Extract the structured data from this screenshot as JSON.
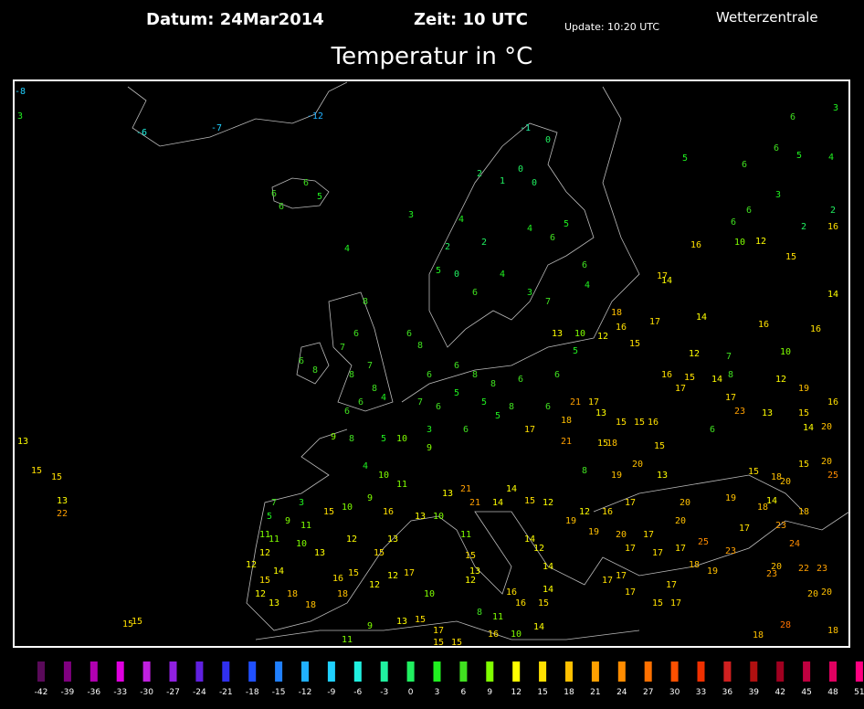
{
  "header": {
    "datum": "Datum: 24Mar2014",
    "zeit": "Zeit: 10 UTC",
    "update": "Update: 10:20 UTC",
    "brand": "Wetterzentrale",
    "title": "Temperatur in °C"
  },
  "stations": [
    -8,
    3,
    -6,
    -7,
    -12,
    6,
    6,
    5,
    6,
    3,
    4,
    -1,
    0,
    0,
    0,
    1,
    2,
    4,
    2,
    2,
    4,
    6,
    5,
    0,
    5,
    6,
    4,
    3,
    7,
    6,
    4,
    5,
    6,
    6,
    5,
    4,
    6,
    3,
    3,
    6,
    6,
    2,
    2,
    16,
    16,
    10,
    12,
    15,
    17,
    14,
    18,
    17,
    14,
    16,
    12,
    14,
    16,
    16,
    15,
    12,
    7,
    10,
    13,
    10,
    5,
    6,
    6,
    8,
    8,
    6,
    6,
    6,
    8,
    8,
    6,
    7,
    8,
    7,
    8,
    6,
    4,
    8,
    6,
    6,
    7,
    6,
    5,
    5,
    8,
    6,
    3,
    6,
    5,
    17,
    18,
    21,
    17,
    13,
    15,
    15,
    16,
    17,
    16,
    15,
    14,
    8,
    12,
    19,
    16,
    17,
    23,
    13,
    15,
    14,
    20,
    21,
    15,
    18,
    15,
    20,
    13,
    19,
    8,
    6,
    9,
    8,
    5,
    10,
    9,
    4,
    10,
    11,
    9,
    10,
    15,
    16,
    13,
    10,
    7,
    3,
    5,
    9,
    11,
    11,
    11,
    12,
    10,
    13,
    12,
    15,
    13,
    12,
    17,
    16,
    15,
    12,
    12,
    15,
    14,
    12,
    13,
    18,
    18,
    18,
    15,
    15,
    13,
    15,
    15,
    13,
    22,
    13,
    21,
    21,
    14,
    14,
    15,
    12,
    11,
    15,
    13,
    12,
    14,
    12,
    14,
    16,
    16,
    15,
    14,
    11,
    8,
    17,
    15,
    13,
    9,
    11,
    15,
    15,
    16,
    10,
    14,
    10,
    12,
    19,
    19,
    16,
    17,
    20,
    17,
    17,
    17,
    17,
    18,
    19,
    20,
    20,
    19,
    18,
    14,
    20,
    18,
    15,
    15,
    20,
    25,
    18,
    23,
    17,
    23,
    25,
    24,
    20,
    23,
    22,
    23,
    20,
    20,
    28,
    18,
    18,
    15,
    17,
    17,
    17,
    17,
    17
  ],
  "colorbar": {
    "labels": [
      -42,
      -39,
      -36,
      -33,
      -30,
      -27,
      -24,
      -21,
      -18,
      -15,
      -12,
      -9,
      -6,
      -3,
      0,
      3,
      6,
      9,
      12,
      15,
      18,
      21,
      24,
      27,
      30,
      33,
      36,
      39,
      42,
      45,
      48,
      51
    ],
    "colors": [
      "#5a0a5a",
      "#800080",
      "#b000b0",
      "#e000e0",
      "#c020e0",
      "#9020e0",
      "#6020e0",
      "#3030f0",
      "#2050ff",
      "#2080ff",
      "#20b0ff",
      "#20d0ff",
      "#20f0e0",
      "#20f0a0",
      "#20f060",
      "#20f020",
      "#40e020",
      "#80ff00",
      "#ffff00",
      "#ffe000",
      "#ffc000",
      "#ffa000",
      "#ff8c00",
      "#ff7000",
      "#ff5000",
      "#f03000",
      "#d02020",
      "#b01010",
      "#a00020",
      "#c00040",
      "#e00060",
      "#ff0080"
    ]
  }
}
